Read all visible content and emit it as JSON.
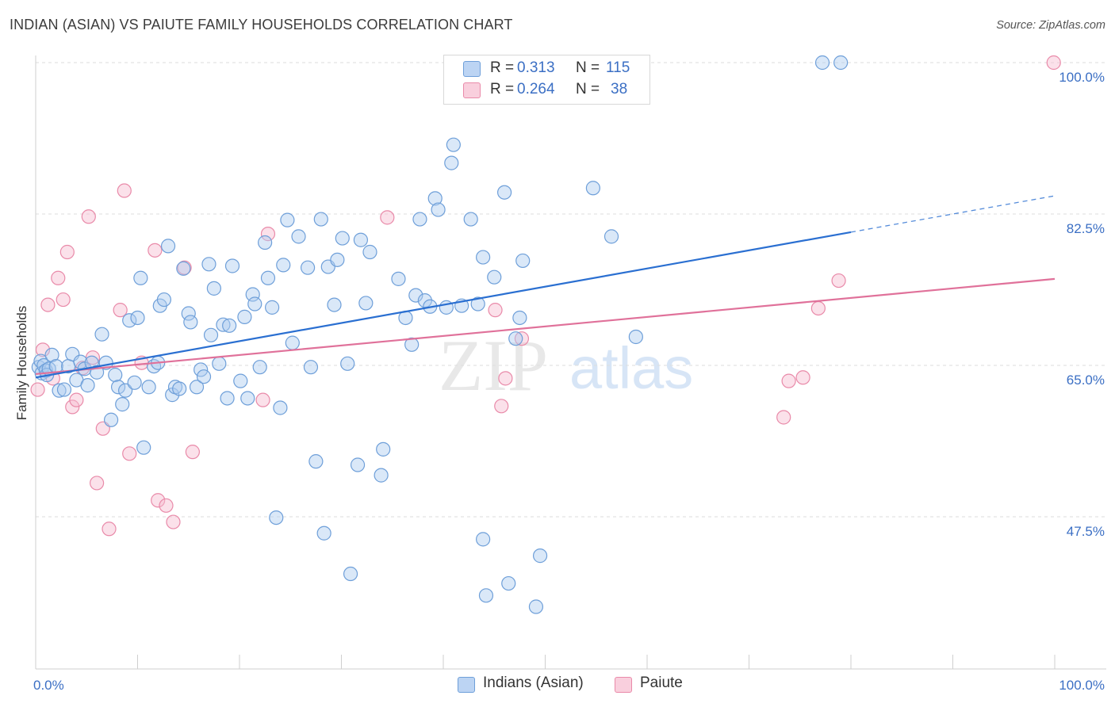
{
  "title": "INDIAN (ASIAN) VS PAIUTE FAMILY HOUSEHOLDS CORRELATION CHART",
  "source": "Source: ZipAtlas.com",
  "watermark": {
    "part1": "ZIP",
    "part2": "atlas"
  },
  "legend": {
    "rows": [
      {
        "r_label": "R =",
        "r_value": "0.313",
        "n_label": "N =",
        "n_value": "115"
      },
      {
        "r_label": "R =",
        "r_value": "0.264",
        "n_label": "N =",
        "n_value": "38"
      }
    ]
  },
  "bottom_legend": [
    {
      "label": "Indians (Asian)"
    },
    {
      "label": "Paiute"
    }
  ],
  "colors": {
    "blue_fill": "#aecbef",
    "blue_stroke": "#6e9fd9",
    "blue_line": "#2a6fd1",
    "pink_fill": "#f6bdd0",
    "pink_stroke": "#e98aa9",
    "pink_line": "#e0719a",
    "tick_label": "#3b6fc4",
    "grid": "#dedede"
  },
  "chart_data": {
    "type": "scatter",
    "title": "INDIAN (ASIAN) VS PAIUTE FAMILY HOUSEHOLDS CORRELATION CHART",
    "xlabel": "",
    "ylabel": "Family Households",
    "xlim": [
      0,
      100
    ],
    "ylim": [
      32.5,
      101.5
    ],
    "x_tick_labels": [
      "0.0%",
      "100.0%"
    ],
    "y_ticks": [
      47.5,
      65.0,
      82.5,
      100.0
    ],
    "y_tick_labels": [
      "47.5%",
      "65.0%",
      "82.5%",
      "100.0%"
    ],
    "grid": true,
    "series": [
      {
        "name": "Indians (Asian)",
        "r": 0.313,
        "n": 115,
        "trend": {
          "x0": 0,
          "y0": 63.6,
          "x1": 80,
          "y1": 80.4,
          "dash_to_x": 100,
          "dash_to_y": 84.6
        },
        "points": [
          [
            0.3,
            64.8
          ],
          [
            0.5,
            65.5
          ],
          [
            0.6,
            64.1
          ],
          [
            0.8,
            65.0
          ],
          [
            1.0,
            64.4
          ],
          [
            1.1,
            63.9
          ],
          [
            1.3,
            64.6
          ],
          [
            1.6,
            66.2
          ],
          [
            2.0,
            64.9
          ],
          [
            2.3,
            62.1
          ],
          [
            2.8,
            62.2
          ],
          [
            3.2,
            64.9
          ],
          [
            3.6,
            66.3
          ],
          [
            4.0,
            63.3
          ],
          [
            4.4,
            65.4
          ],
          [
            4.8,
            64.6
          ],
          [
            5.1,
            62.7
          ],
          [
            5.5,
            65.3
          ],
          [
            6.0,
            64.2
          ],
          [
            6.5,
            68.6
          ],
          [
            6.9,
            65.3
          ],
          [
            7.4,
            58.7
          ],
          [
            7.8,
            63.9
          ],
          [
            8.1,
            62.5
          ],
          [
            8.5,
            60.5
          ],
          [
            8.8,
            62.1
          ],
          [
            9.2,
            70.2
          ],
          [
            9.7,
            63.0
          ],
          [
            10.0,
            70.5
          ],
          [
            10.3,
            75.1
          ],
          [
            10.6,
            55.5
          ],
          [
            11.1,
            62.5
          ],
          [
            11.6,
            64.9
          ],
          [
            12.0,
            65.3
          ],
          [
            12.2,
            71.9
          ],
          [
            12.6,
            72.6
          ],
          [
            13.0,
            78.8
          ],
          [
            13.4,
            61.6
          ],
          [
            13.7,
            62.5
          ],
          [
            14.1,
            62.3
          ],
          [
            14.5,
            76.2
          ],
          [
            15.0,
            71.0
          ],
          [
            15.2,
            70.0
          ],
          [
            15.8,
            62.5
          ],
          [
            16.2,
            64.5
          ],
          [
            16.5,
            63.7
          ],
          [
            17.0,
            76.7
          ],
          [
            17.2,
            68.5
          ],
          [
            17.5,
            73.9
          ],
          [
            18.0,
            65.2
          ],
          [
            18.4,
            69.7
          ],
          [
            18.8,
            61.2
          ],
          [
            19.0,
            69.6
          ],
          [
            19.3,
            76.5
          ],
          [
            20.1,
            63.2
          ],
          [
            20.5,
            70.6
          ],
          [
            20.8,
            61.2
          ],
          [
            21.3,
            73.2
          ],
          [
            21.5,
            72.1
          ],
          [
            22.0,
            64.8
          ],
          [
            22.5,
            79.2
          ],
          [
            22.8,
            75.1
          ],
          [
            23.2,
            71.7
          ],
          [
            23.6,
            47.4
          ],
          [
            24.0,
            60.1
          ],
          [
            24.3,
            76.6
          ],
          [
            24.7,
            81.8
          ],
          [
            25.2,
            67.6
          ],
          [
            25.8,
            79.9
          ],
          [
            26.7,
            76.3
          ],
          [
            27.0,
            64.8
          ],
          [
            27.5,
            53.9
          ],
          [
            28.0,
            81.9
          ],
          [
            28.3,
            45.6
          ],
          [
            28.7,
            76.4
          ],
          [
            29.3,
            72.0
          ],
          [
            29.6,
            77.2
          ],
          [
            30.1,
            79.7
          ],
          [
            30.6,
            65.2
          ],
          [
            30.9,
            40.9
          ],
          [
            31.6,
            53.5
          ],
          [
            31.9,
            79.5
          ],
          [
            32.4,
            72.2
          ],
          [
            32.8,
            78.1
          ],
          [
            33.9,
            52.3
          ],
          [
            34.1,
            55.3
          ],
          [
            35.6,
            75.0
          ],
          [
            36.3,
            70.5
          ],
          [
            36.9,
            67.4
          ],
          [
            37.3,
            73.1
          ],
          [
            37.7,
            81.9
          ],
          [
            38.2,
            72.5
          ],
          [
            38.7,
            71.8
          ],
          [
            39.2,
            84.3
          ],
          [
            39.5,
            83.0
          ],
          [
            40.3,
            71.7
          ],
          [
            40.8,
            88.4
          ],
          [
            41.0,
            90.5
          ],
          [
            41.8,
            71.9
          ],
          [
            42.7,
            81.9
          ],
          [
            43.4,
            72.1
          ],
          [
            43.9,
            77.5
          ],
          [
            43.9,
            44.9
          ],
          [
            44.2,
            38.4
          ],
          [
            45.0,
            75.2
          ],
          [
            46.0,
            85.0
          ],
          [
            46.4,
            39.8
          ],
          [
            47.1,
            68.1
          ],
          [
            47.5,
            70.5
          ],
          [
            47.8,
            77.1
          ],
          [
            49.1,
            37.1
          ],
          [
            49.5,
            43.0
          ],
          [
            54.7,
            85.5
          ],
          [
            56.5,
            79.9
          ],
          [
            58.9,
            68.3
          ],
          [
            77.2,
            100.0
          ],
          [
            79.0,
            100.0
          ]
        ]
      },
      {
        "name": "Paiute",
        "r": 0.264,
        "n": 38,
        "trend": {
          "x0": 0,
          "y0": 64.0,
          "x1": 100,
          "y1": 75.0
        },
        "points": [
          [
            0.2,
            62.2
          ],
          [
            0.7,
            66.8
          ],
          [
            1.2,
            72.0
          ],
          [
            1.7,
            63.5
          ],
          [
            2.2,
            75.1
          ],
          [
            2.7,
            72.6
          ],
          [
            3.1,
            78.1
          ],
          [
            3.6,
            60.2
          ],
          [
            4.0,
            61.0
          ],
          [
            4.6,
            64.7
          ],
          [
            5.2,
            82.2
          ],
          [
            5.6,
            65.9
          ],
          [
            6.0,
            51.4
          ],
          [
            6.6,
            57.7
          ],
          [
            7.2,
            46.1
          ],
          [
            8.3,
            71.4
          ],
          [
            8.7,
            85.2
          ],
          [
            9.2,
            54.8
          ],
          [
            10.4,
            65.3
          ],
          [
            11.7,
            78.3
          ],
          [
            12.0,
            49.4
          ],
          [
            12.8,
            48.8
          ],
          [
            13.5,
            46.9
          ],
          [
            14.6,
            76.3
          ],
          [
            15.4,
            55.0
          ],
          [
            22.3,
            61.0
          ],
          [
            22.8,
            80.2
          ],
          [
            34.5,
            82.1
          ],
          [
            45.1,
            71.4
          ],
          [
            45.7,
            60.3
          ],
          [
            46.1,
            63.5
          ],
          [
            47.7,
            68.1
          ],
          [
            73.4,
            59.0
          ],
          [
            73.9,
            63.2
          ],
          [
            75.3,
            63.6
          ],
          [
            76.8,
            71.6
          ],
          [
            78.8,
            74.8
          ],
          [
            99.9,
            100.0
          ]
        ]
      }
    ]
  }
}
